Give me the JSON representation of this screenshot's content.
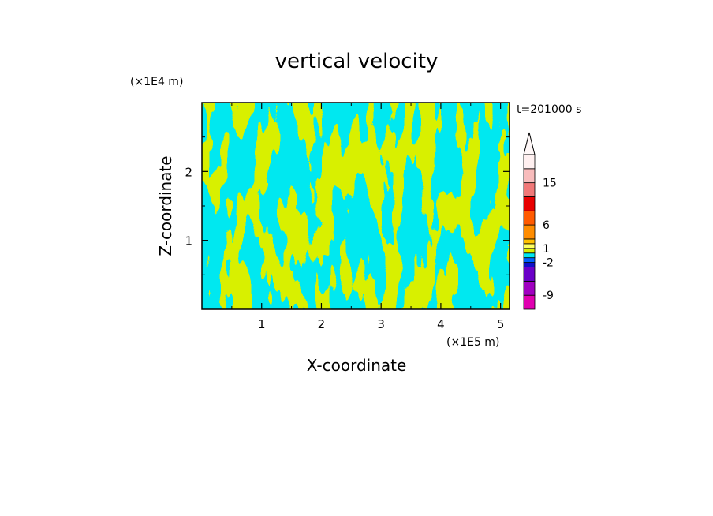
{
  "chart_data": {
    "type": "heatmap",
    "title": "vertical velocity",
    "xlabel": "X-coordinate",
    "ylabel": "Z-coordinate",
    "x_unit": "(×1E5 m)",
    "y_unit": "(×1E4 m)",
    "time_label": "t=201000 s",
    "xlim": [
      0,
      5.15
    ],
    "ylim": [
      0,
      3.0
    ],
    "x_ticks": [
      1,
      2,
      3,
      4,
      5
    ],
    "y_ticks": [
      1,
      2
    ],
    "grid": false,
    "colorbar": {
      "position": "right",
      "extend": "max",
      "labels": [
        "15",
        "6",
        "1",
        "-2",
        "-9"
      ],
      "label_values": [
        15,
        6,
        1,
        -2,
        -9
      ],
      "levels": [
        -12,
        -9,
        -6,
        -3,
        -2,
        -1,
        0,
        1,
        2,
        3,
        6,
        9,
        12,
        15,
        18,
        21
      ],
      "colors": [
        "#e000b0",
        "#a000c0",
        "#6a00c8",
        "#1010c8",
        "#0060ff",
        "#00e8f0",
        "#d8f000",
        "#ffff60",
        "#ffc000",
        "#ff8c00",
        "#ff5a00",
        "#e80000",
        "#f07878",
        "#f8bcbc",
        "#fff0f0"
      ]
    },
    "field": {
      "dominant_colors": [
        "#00e8f0",
        "#d8f000"
      ],
      "description_values": "banded pattern alternating between -1..0 (cyan) and 0..1 (yellow-green)"
    }
  }
}
